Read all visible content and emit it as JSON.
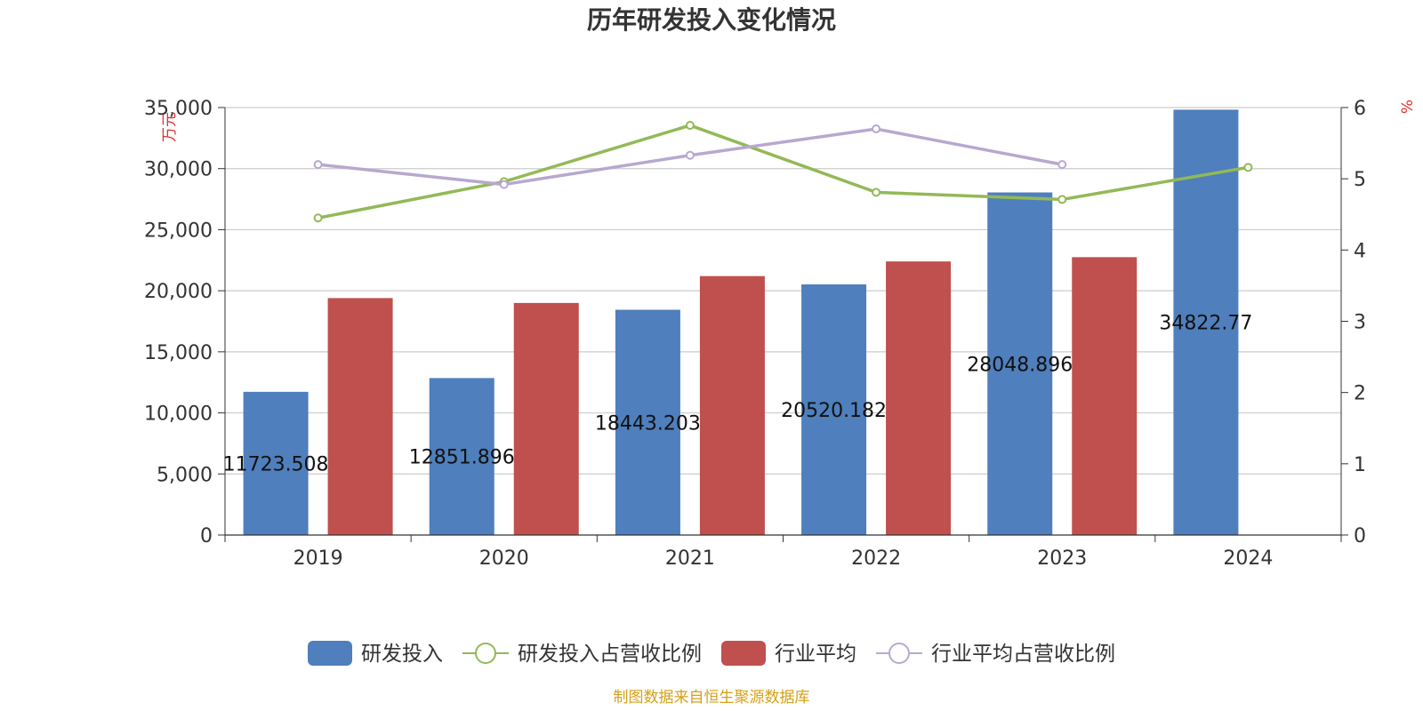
{
  "chart_data": {
    "type": "bar",
    "title": "历年研发投入变化情况",
    "categories": [
      "2019",
      "2020",
      "2021",
      "2022",
      "2023",
      "2024"
    ],
    "y_left": {
      "unit_label": "万元",
      "range": [
        0,
        35000
      ],
      "ticks": [
        "0",
        "5,000",
        "10,000",
        "15,000",
        "20,000",
        "25,000",
        "30,000",
        "35,000"
      ]
    },
    "y_right": {
      "unit_label": "%",
      "range": [
        0,
        6
      ],
      "ticks": [
        "0",
        "1",
        "2",
        "3",
        "4",
        "5",
        "6"
      ]
    },
    "grid": true,
    "legend_position": "bottom-center",
    "series": [
      {
        "name": "研发投入",
        "kind": "bar",
        "axis": "left",
        "color": "#4f7fbc",
        "values": [
          11723.508,
          12851.896,
          18443.203,
          20520.182,
          28048.896,
          34822.77
        ],
        "labels": [
          "11723.508",
          "12851.896",
          "18443.203",
          "20520.182",
          "28048.896",
          "34822.77"
        ]
      },
      {
        "name": "研发投入占营收比例",
        "kind": "line",
        "axis": "right",
        "color": "#93b956",
        "values": [
          4.45,
          4.96,
          5.75,
          4.81,
          4.71,
          5.16
        ]
      },
      {
        "name": "行业平均",
        "kind": "bar",
        "axis": "left",
        "color": "#c0504d",
        "values": [
          19400,
          19000,
          21200,
          22400,
          22750,
          null
        ]
      },
      {
        "name": "行业平均占营收比例",
        "kind": "line",
        "axis": "right",
        "color": "#b7a8d0",
        "values": [
          5.2,
          4.92,
          5.33,
          5.7,
          5.2,
          null
        ]
      }
    ]
  },
  "source_text": "制图数据来自恒生聚源数据库",
  "colors": {
    "source": "#d4a017",
    "grid": "#cccccc",
    "axis": "#333333",
    "unit": "#e03030"
  }
}
